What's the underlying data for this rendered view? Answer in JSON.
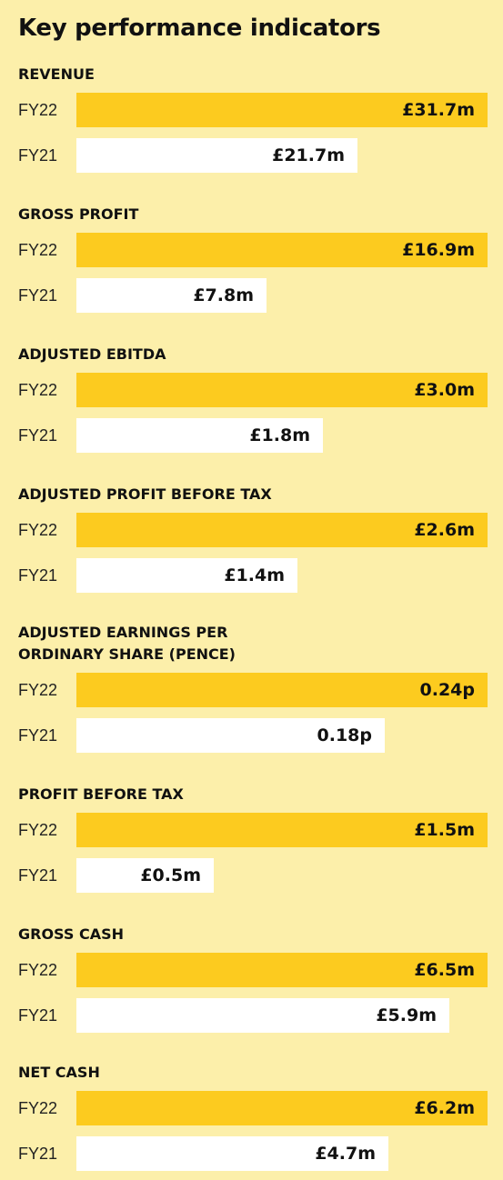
{
  "title": "Key performance indicators",
  "chart_data": [
    {
      "type": "bar",
      "title": "REVENUE",
      "categories": [
        "FY22",
        "FY21"
      ],
      "values": [
        31.7,
        21.7
      ],
      "value_labels": [
        "£31.7m",
        "£21.7m"
      ],
      "unit": "£m",
      "colors": [
        "#fccb1f",
        "#ffffff"
      ]
    },
    {
      "type": "bar",
      "title": "GROSS PROFIT",
      "categories": [
        "FY22",
        "FY21"
      ],
      "values": [
        16.9,
        7.8
      ],
      "value_labels": [
        "£16.9m",
        "£7.8m"
      ],
      "unit": "£m",
      "colors": [
        "#fccb1f",
        "#ffffff"
      ]
    },
    {
      "type": "bar",
      "title": "ADJUSTED EBITDA",
      "categories": [
        "FY22",
        "FY21"
      ],
      "values": [
        3.0,
        1.8
      ],
      "value_labels": [
        "£3.0m",
        "£1.8m"
      ],
      "unit": "£m",
      "colors": [
        "#fccb1f",
        "#ffffff"
      ]
    },
    {
      "type": "bar",
      "title": "ADJUSTED PROFIT BEFORE TAX",
      "categories": [
        "FY22",
        "FY21"
      ],
      "values": [
        2.6,
        1.4
      ],
      "value_labels": [
        "£2.6m",
        "£1.4m"
      ],
      "unit": "£m",
      "colors": [
        "#fccb1f",
        "#ffffff"
      ]
    },
    {
      "type": "bar",
      "title_lines": [
        "ADJUSTED EARNINGS PER",
        "ORDINARY SHARE (PENCE)"
      ],
      "categories": [
        "FY22",
        "FY21"
      ],
      "values": [
        0.24,
        0.18
      ],
      "value_labels": [
        "0.24p",
        "0.18p"
      ],
      "unit": "p",
      "colors": [
        "#fccb1f",
        "#ffffff"
      ]
    },
    {
      "type": "bar",
      "title": "PROFIT BEFORE TAX",
      "categories": [
        "FY22",
        "FY21"
      ],
      "values": [
        1.5,
        0.5
      ],
      "value_labels": [
        "£1.5m",
        "£0.5m"
      ],
      "unit": "£m",
      "colors": [
        "#fccb1f",
        "#ffffff"
      ]
    },
    {
      "type": "bar",
      "title": "GROSS CASH",
      "categories": [
        "FY22",
        "FY21"
      ],
      "values": [
        6.5,
        5.9
      ],
      "value_labels": [
        "£6.5m",
        "£5.9m"
      ],
      "unit": "£m",
      "colors": [
        "#fccb1f",
        "#ffffff"
      ]
    },
    {
      "type": "bar",
      "title": "NET CASH",
      "categories": [
        "FY22",
        "FY21"
      ],
      "values": [
        6.2,
        4.7
      ],
      "value_labels": [
        "£6.2m",
        "£4.7m"
      ],
      "unit": "£m",
      "colors": [
        "#fccb1f",
        "#ffffff"
      ]
    }
  ]
}
